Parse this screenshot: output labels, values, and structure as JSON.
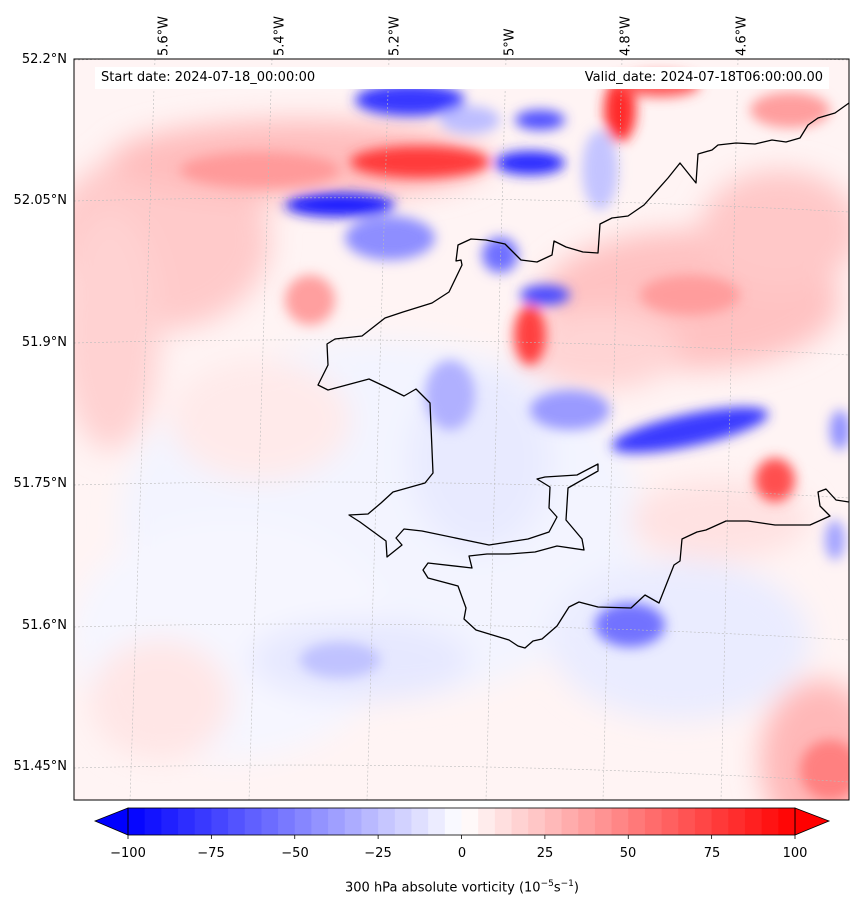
{
  "map": {
    "start_date": "Start date: 2024-07-18_00:00:00",
    "valid_date": "Valid_date: 2024-07-18T06:00:00.00",
    "longitude_labels": [
      "5.6°W",
      "5.4°W",
      "5.2°W",
      "5°W",
      "4.8°W",
      "4.6°W"
    ],
    "latitude_labels": [
      "52.2°N",
      "52.05°N",
      "51.9°N",
      "51.75°N",
      "51.6°N",
      "51.45°N"
    ],
    "coastline_color": "#000000",
    "gridline_color": "#bbbbbb"
  },
  "colorbar": {
    "label_main": "300 hPa absolute vorticity (10",
    "label_exp1": "−5",
    "label_mid": "s",
    "label_exp2": "−1",
    "label_end": ")",
    "ticks": [
      "−100",
      "−75",
      "−50",
      "−25",
      "0",
      "25",
      "50",
      "75",
      "100"
    ],
    "range": [
      -100,
      100
    ],
    "extend": "both",
    "colormap": "bwr",
    "min_color": "#0000ff",
    "mid_color": "#ffffff",
    "max_color": "#ff0000"
  }
}
